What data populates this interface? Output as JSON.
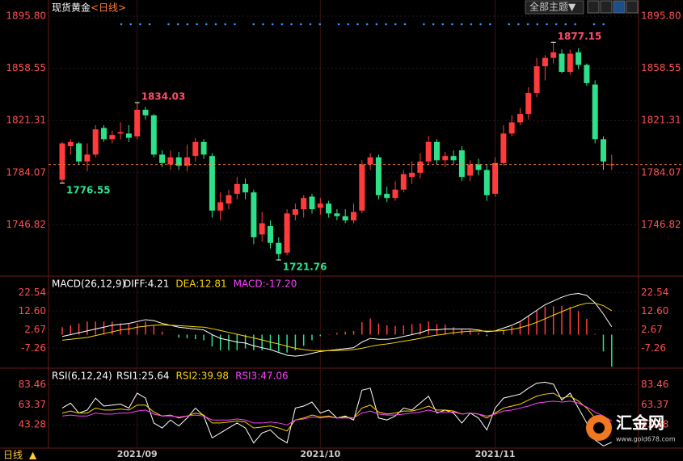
{
  "page": {
    "theme_button": "全部主题▼",
    "period": "日线",
    "logo": "汇金网",
    "logo_url": "www.gold678.com"
  },
  "chart_data": [
    {
      "type": "candlestick",
      "title": "现货黄金",
      "subtitle": "<日线>",
      "up_color": "#ff3b3b",
      "down_color": "#2ee08a",
      "ylim": [
        1711.4,
        1907.3
      ],
      "yticks": [
        {
          "value": 1895.8,
          "label": "1895.80"
        },
        1858.55,
        1821.31,
        1784.07,
        1746.82
      ],
      "x_labels": [
        {
          "index": 9,
          "label": "2021/09"
        },
        {
          "index": 31,
          "label": "2021/10"
        },
        {
          "index": 52,
          "label": "2021/11"
        }
      ],
      "annotations": [
        {
          "index": 9,
          "value": 1834.03
        },
        {
          "index": 59,
          "value": 1877.15
        },
        {
          "index": 0,
          "value": 1776.55
        },
        {
          "index": 26,
          "value": 1721.76
        }
      ],
      "ohlc": [
        [
          1779,
          1806,
          1776.55,
          1805
        ],
        [
          1803,
          1808,
          1797,
          1806
        ],
        [
          1805,
          1806,
          1790,
          1792
        ],
        [
          1792,
          1805,
          1785,
          1797
        ],
        [
          1797,
          1818,
          1795,
          1815
        ],
        [
          1816,
          1818,
          1806,
          1808
        ],
        [
          1808,
          1814,
          1805,
          1811
        ],
        [
          1812,
          1820,
          1808,
          1813
        ],
        [
          1812,
          1818,
          1806,
          1809
        ],
        [
          1810,
          1834.03,
          1808,
          1829
        ],
        [
          1829,
          1831,
          1822,
          1825
        ],
        [
          1825,
          1826,
          1795,
          1797
        ],
        [
          1797,
          1800,
          1788,
          1791
        ],
        [
          1790,
          1800,
          1786,
          1795
        ],
        [
          1795,
          1799,
          1786,
          1789
        ],
        [
          1789,
          1804,
          1785,
          1795
        ],
        [
          1796,
          1809,
          1792,
          1806
        ],
        [
          1806,
          1808,
          1794,
          1797
        ],
        [
          1796,
          1798,
          1752,
          1757
        ],
        [
          1757,
          1770,
          1750,
          1763
        ],
        [
          1762,
          1772,
          1758,
          1768
        ],
        [
          1769,
          1781,
          1765,
          1776
        ],
        [
          1776,
          1780,
          1765,
          1770
        ],
        [
          1770,
          1772,
          1733,
          1738
        ],
        [
          1740,
          1756,
          1735,
          1748
        ],
        [
          1746,
          1750,
          1730,
          1734
        ],
        [
          1734,
          1738,
          1721.76,
          1726
        ],
        [
          1727,
          1758,
          1725,
          1755
        ],
        [
          1754,
          1762,
          1750,
          1758
        ],
        [
          1758,
          1768,
          1752,
          1766
        ],
        [
          1767,
          1769,
          1755,
          1758
        ],
        [
          1759,
          1766,
          1754,
          1762
        ],
        [
          1762,
          1764,
          1752,
          1755
        ],
        [
          1755,
          1758,
          1750,
          1753
        ],
        [
          1753,
          1758,
          1748,
          1750
        ],
        [
          1750,
          1762,
          1748,
          1756
        ],
        [
          1757,
          1793,
          1755,
          1790
        ],
        [
          1790,
          1798,
          1786,
          1795
        ],
        [
          1795,
          1797,
          1765,
          1768
        ],
        [
          1769,
          1774,
          1763,
          1766
        ],
        [
          1766,
          1778,
          1764,
          1772
        ],
        [
          1772,
          1786,
          1770,
          1783
        ],
        [
          1781,
          1792,
          1776,
          1784
        ],
        [
          1784,
          1798,
          1780,
          1792
        ],
        [
          1792,
          1810,
          1790,
          1806
        ],
        [
          1806,
          1808,
          1790,
          1793
        ],
        [
          1793,
          1799,
          1788,
          1796
        ],
        [
          1796,
          1800,
          1790,
          1793
        ],
        [
          1800,
          1803,
          1778,
          1781
        ],
        [
          1782,
          1793,
          1778,
          1790
        ],
        [
          1790,
          1794,
          1782,
          1786
        ],
        [
          1786,
          1790,
          1764,
          1768
        ],
        [
          1769,
          1795,
          1767,
          1791
        ],
        [
          1791,
          1818,
          1789,
          1812
        ],
        [
          1812,
          1825,
          1810,
          1820
        ],
        [
          1820,
          1830,
          1818,
          1826
        ],
        [
          1826,
          1845,
          1822,
          1841
        ],
        [
          1841,
          1866,
          1838,
          1860
        ],
        [
          1860,
          1868,
          1850,
          1866
        ],
        [
          1866,
          1877.15,
          1862,
          1870
        ],
        [
          1869,
          1872,
          1855,
          1856
        ],
        [
          1856,
          1872,
          1854,
          1869
        ],
        [
          1870,
          1873,
          1858,
          1861
        ],
        [
          1861,
          1862,
          1846,
          1848
        ],
        [
          1847,
          1850,
          1805,
          1808
        ],
        [
          1808,
          1810,
          1786,
          1792
        ],
        [
          1790,
          1797,
          1786,
          1790
        ]
      ]
    },
    {
      "type": "macd",
      "title": "MACD(26,12,9)",
      "ylim": [
        -17.5,
        30
      ],
      "yticks": [
        22.54,
        {
          "value": 12.6,
          "label": "12.60"
        },
        2.67,
        -7.26
      ],
      "up_color": "#ff3b3b",
      "down_color": "#2ee08a",
      "series": [
        {
          "name": "DIFF",
          "label": "DIFF:4.21",
          "color": "#ffffff",
          "values": [
            -1,
            0,
            1,
            2,
            3,
            4,
            5,
            5.5,
            6,
            7,
            8,
            7.5,
            6,
            5,
            4,
            3.5,
            3,
            2.5,
            0,
            -2,
            -3,
            -4,
            -4.5,
            -6,
            -7,
            -8,
            -9.5,
            -11,
            -11.5,
            -11,
            -10,
            -9,
            -8.5,
            -8,
            -7.5,
            -7,
            -4,
            -2,
            -2.5,
            -2.5,
            -2,
            -1,
            0,
            1,
            2.5,
            2.5,
            3,
            3,
            3,
            3,
            2.5,
            1.5,
            2,
            3.5,
            5,
            7,
            10,
            13,
            16,
            18,
            20,
            21.5,
            22,
            21,
            17,
            11,
            4.21
          ]
        },
        {
          "name": "DEA",
          "label": "DEA:12.81",
          "color": "#ffd400",
          "values": [
            -3,
            -2.5,
            -2,
            -1.5,
            -0.5,
            0.5,
            1.5,
            2.5,
            3,
            4,
            4.5,
            5,
            5.2,
            5,
            4.8,
            4.5,
            4.2,
            4,
            3.2,
            2.2,
            1.2,
            0.2,
            -0.8,
            -1.8,
            -2.8,
            -4,
            -5,
            -6.2,
            -7.3,
            -8,
            -8.5,
            -8.6,
            -8.6,
            -8.5,
            -8.3,
            -8,
            -7.3,
            -6.3,
            -5.5,
            -5,
            -4.3,
            -3.5,
            -2.8,
            -2,
            -1,
            -0.3,
            0.3,
            1,
            1.5,
            1.8,
            2,
            1.9,
            1.9,
            2.2,
            2.8,
            3.7,
            5,
            6.6,
            8.5,
            10.4,
            12.3,
            14.1,
            15.7,
            16.8,
            16.8,
            15.5,
            12.81
          ]
        }
      ],
      "histogram": {
        "name": "MACD",
        "label": "MACD:-17.20",
        "color": "#ff40ff",
        "values": [
          4,
          5,
          6,
          7,
          7,
          7,
          7,
          6,
          6,
          6,
          7,
          5,
          1.6,
          0,
          -1.6,
          -2,
          -2.4,
          -3,
          -6.4,
          -8.4,
          -8.4,
          -8.4,
          -7.4,
          -8.4,
          -8.4,
          -8,
          -9,
          -9.6,
          -8.4,
          -6,
          -3,
          -0.8,
          0.2,
          1,
          1.6,
          2,
          6.6,
          8.6,
          6,
          5,
          4.6,
          5,
          5.6,
          6,
          7,
          5.6,
          5.4,
          4,
          3,
          2.4,
          1,
          -0.8,
          0.2,
          2.6,
          4.4,
          6.6,
          10,
          12.8,
          15,
          15.2,
          15.4,
          14.8,
          12.6,
          8.4,
          0.4,
          -9,
          -17.2
        ]
      }
    },
    {
      "type": "rsi",
      "title": "RSI(6,12,24)",
      "ylim": [
        19.8,
        99.3
      ],
      "yticks": [
        83.46,
        63.37,
        43.28
      ],
      "series": [
        {
          "name": "RSI1",
          "label": "RSI1:25.64",
          "color": "#ffffff",
          "values": [
            60,
            65,
            55,
            58,
            70,
            62,
            63,
            64,
            60,
            75,
            70,
            45,
            40,
            48,
            42,
            50,
            60,
            52,
            30,
            35,
            40,
            45,
            40,
            25,
            35,
            38,
            30,
            25,
            60,
            62,
            66,
            55,
            58,
            50,
            52,
            48,
            78,
            80,
            50,
            48,
            52,
            60,
            58,
            65,
            72,
            55,
            58,
            55,
            45,
            55,
            50,
            38,
            60,
            70,
            72,
            74,
            80,
            85,
            86,
            84,
            68,
            75,
            60,
            45,
            28,
            22,
            25.64
          ]
        },
        {
          "name": "RSI2",
          "label": "RSI2:39.98",
          "color": "#ffd400",
          "values": [
            55,
            57,
            55,
            55,
            60,
            58,
            58,
            59,
            58,
            63,
            63,
            56,
            52,
            53,
            50,
            52,
            55,
            53,
            45,
            45,
            46,
            47,
            46,
            40,
            41,
            42,
            40,
            37,
            48,
            50,
            53,
            51,
            52,
            50,
            51,
            50,
            60,
            63,
            56,
            54,
            55,
            57,
            57,
            59,
            62,
            58,
            58,
            57,
            54,
            55,
            54,
            50,
            55,
            60,
            62,
            64,
            68,
            72,
            74,
            75,
            70,
            72,
            67,
            60,
            50,
            44,
            39.98
          ]
        },
        {
          "name": "RSI3",
          "label": "RSI3:47.06",
          "color": "#ff40ff",
          "values": [
            52,
            53,
            52,
            52,
            55,
            54,
            54,
            55,
            55,
            57,
            58,
            54,
            52,
            52,
            51,
            52,
            53,
            52,
            48,
            48,
            48,
            49,
            48,
            45,
            45,
            46,
            45,
            43,
            48,
            49,
            51,
            50,
            51,
            50,
            50,
            50,
            55,
            57,
            54,
            53,
            53,
            54,
            55,
            56,
            58,
            56,
            56,
            56,
            54,
            55,
            54,
            52,
            54,
            57,
            58,
            60,
            62,
            65,
            66,
            67,
            66,
            67,
            65,
            61,
            56,
            52,
            47.06
          ]
        }
      ]
    }
  ]
}
